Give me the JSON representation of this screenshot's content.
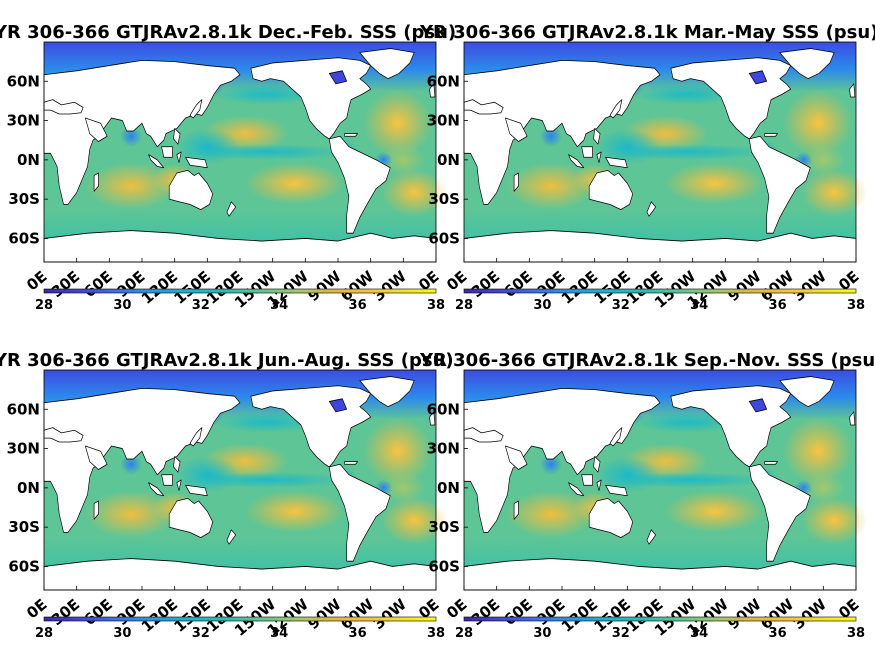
{
  "colors": {
    "colormap": [
      "#3e26a8",
      "#4543dd",
      "#3c6ef4",
      "#2697e6",
      "#1ab3d3",
      "#20c0b4",
      "#5ac895",
      "#9fc96a",
      "#dbba3e",
      "#fdbf37",
      "#f2e12b",
      "#f9fb15"
    ],
    "land": "#ffffff",
    "coast": "#000000"
  },
  "chart_data": [
    {
      "type": "heatmap",
      "title": "YR 306-366 GTJRAv2.8.1k Dec.-Feb. SSS (psu)",
      "season": "DJF",
      "lat_ticks": [
        "60N",
        "30N",
        "0N",
        "30S",
        "60S"
      ],
      "lon_ticks": [
        "0E",
        "30E",
        "60E",
        "90E",
        "120E",
        "150E",
        "180E",
        "150W",
        "120W",
        "90W",
        "60W",
        "30W",
        "0E"
      ],
      "colorbar_ticks": [
        "28",
        "30",
        "32",
        "34",
        "36",
        "38"
      ],
      "clim": [
        28,
        38
      ],
      "xlim": [
        0,
        360
      ],
      "ylim": [
        -78,
        90
      ]
    },
    {
      "type": "heatmap",
      "title": "YR 306-366 GTJRAv2.8.1k Mar.-May SSS (psu)",
      "season": "MAM",
      "lat_ticks": [
        "60N",
        "30N",
        "0N",
        "30S",
        "60S"
      ],
      "lon_ticks": [
        "0E",
        "30E",
        "60E",
        "90E",
        "120E",
        "150E",
        "180E",
        "150W",
        "120W",
        "90W",
        "60W",
        "30W",
        "0E"
      ],
      "colorbar_ticks": [
        "28",
        "30",
        "32",
        "34",
        "36",
        "38"
      ],
      "clim": [
        28,
        38
      ],
      "xlim": [
        0,
        360
      ],
      "ylim": [
        -78,
        90
      ]
    },
    {
      "type": "heatmap",
      "title": "YR 306-366 GTJRAv2.8.1k Jun.-Aug. SSS (psu)",
      "season": "JJA",
      "lat_ticks": [
        "60N",
        "30N",
        "0N",
        "30S",
        "60S"
      ],
      "lon_ticks": [
        "0E",
        "30E",
        "60E",
        "90E",
        "120E",
        "150E",
        "180E",
        "150W",
        "120W",
        "90W",
        "60W",
        "30W",
        "0E"
      ],
      "colorbar_ticks": [
        "28",
        "30",
        "32",
        "34",
        "36",
        "38"
      ],
      "clim": [
        28,
        38
      ],
      "xlim": [
        0,
        360
      ],
      "ylim": [
        -78,
        90
      ]
    },
    {
      "type": "heatmap",
      "title": "YR 306-366 GTJRAv2.8.1k Sep.-Nov. SSS (psu)",
      "season": "SON",
      "lat_ticks": [
        "60N",
        "30N",
        "0N",
        "30S",
        "60S"
      ],
      "lon_ticks": [
        "0E",
        "30E",
        "60E",
        "90E",
        "120E",
        "150E",
        "180E",
        "150W",
        "120W",
        "90W",
        "60W",
        "30W",
        "0E"
      ],
      "colorbar_ticks": [
        "28",
        "30",
        "32",
        "34",
        "36",
        "38"
      ],
      "clim": [
        28,
        38
      ],
      "xlim": [
        0,
        360
      ],
      "ylim": [
        -78,
        90
      ]
    }
  ]
}
